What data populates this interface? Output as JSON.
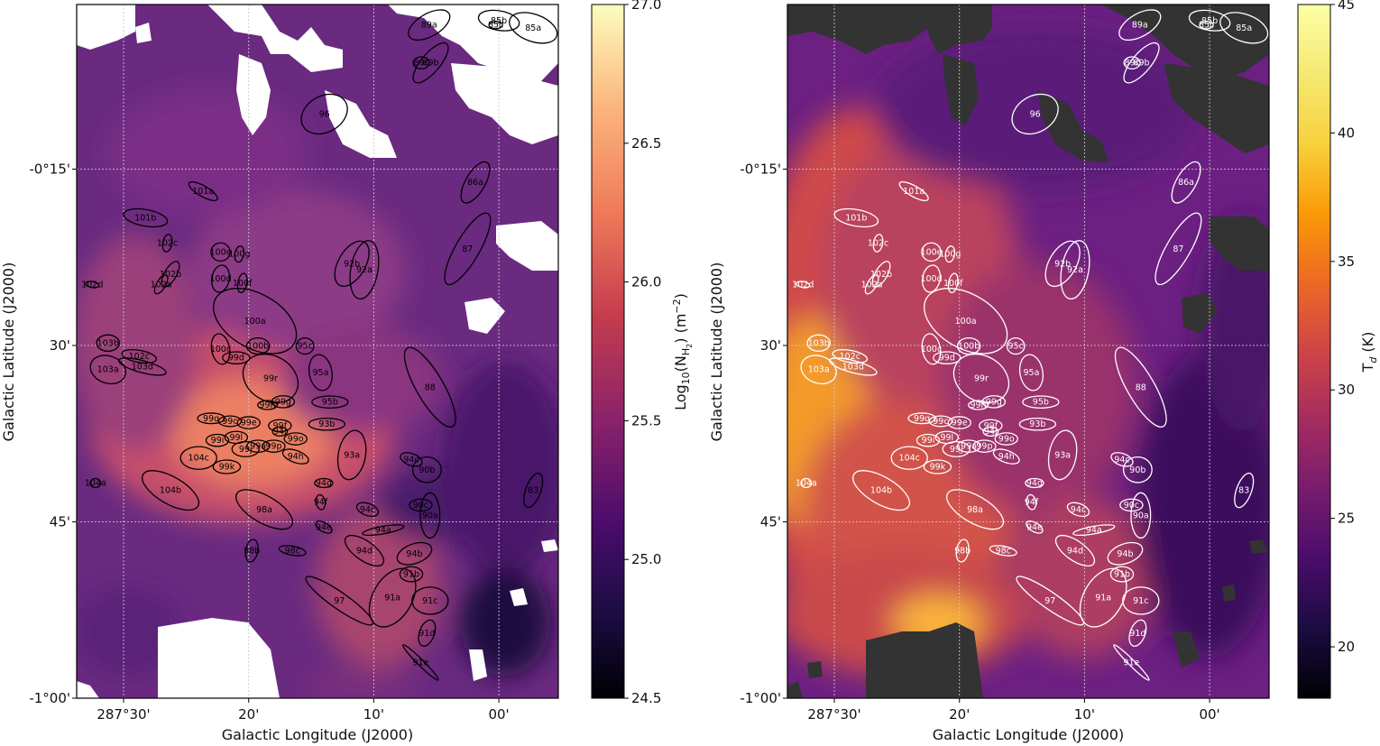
{
  "chart_data": [
    {
      "type": "heatmap",
      "panel": "left",
      "colormap": "inferno",
      "xlabel": "Galactic Longitude (J2000)",
      "ylabel": "Galactic Latitude (J2000)",
      "xticks": [
        {
          "label": "287°30'",
          "value": 287.5
        },
        {
          "label": "20'",
          "value": 287.3333
        },
        {
          "label": "10'",
          "value": 287.1667
        },
        {
          "label": "00'",
          "value": 287.0
        }
      ],
      "yticks": [
        {
          "label": "-0°15'",
          "value": -0.25
        },
        {
          "label": "30'",
          "value": -0.5
        },
        {
          "label": "45'",
          "value": -0.75
        },
        {
          "label": "-1°00'",
          "value": -1.0
        }
      ],
      "colorbar": {
        "label_prefix": "Log",
        "label_sub": "10",
        "label_body": "(N",
        "label_subsub": "H",
        "label_subsubsub": "2",
        "label_suffix": ") (m",
        "label_sup": "−2",
        "label_end": ")",
        "ticks": [
          "24.5",
          "25.0",
          "25.5",
          "26.0",
          "26.5",
          "27.0"
        ],
        "range": [
          24.5,
          27.0
        ]
      },
      "ellipse_color": "#000000",
      "masked_color": "#ffffff"
    },
    {
      "type": "heatmap",
      "panel": "right",
      "colormap": "inferno",
      "xlabel": "Galactic Longitude (J2000)",
      "ylabel": "Galactic Latitude (J2000)",
      "xticks": [
        {
          "label": "287°30'",
          "value": 287.5
        },
        {
          "label": "20'",
          "value": 287.3333
        },
        {
          "label": "10'",
          "value": 287.1667
        },
        {
          "label": "00'",
          "value": 287.0
        }
      ],
      "yticks": [
        {
          "label": "-0°15'",
          "value": -0.25
        },
        {
          "label": "30'",
          "value": -0.5
        },
        {
          "label": "45'",
          "value": -0.75
        },
        {
          "label": "-1°00'",
          "value": -1.0
        }
      ],
      "colorbar": {
        "label_main": "T",
        "label_sub": "d",
        "label_suffix": " (K)",
        "ticks": [
          "20",
          "25",
          "30",
          "35",
          "40",
          "45"
        ],
        "range": [
          18,
          45
        ]
      },
      "ellipse_color": "#ffffff",
      "masked_color": "#333333"
    }
  ],
  "clumps": [
    {
      "label": "89a",
      "l": 287.0929,
      "b": -0.0457,
      "a": 0.0306,
      "bb": 0.0151,
      "pa": 30
    },
    {
      "label": "85b",
      "l": 287.0,
      "b": -0.0394,
      "a": 0.0275,
      "bb": 0.013,
      "pa": -10
    },
    {
      "label": "85c",
      "l": 287.0042,
      "b": -0.0457,
      "a": 0.009,
      "bb": 0.005,
      "pa": 0
    },
    {
      "label": "85a",
      "l": 286.9542,
      "b": -0.0498,
      "a": 0.0331,
      "bb": 0.0181,
      "pa": -20
    },
    {
      "label": "89c",
      "l": 287.1033,
      "b": -0.0994,
      "a": 0.0108,
      "bb": 0.008,
      "pa": 0
    },
    {
      "label": "89b",
      "l": 287.0908,
      "b": -0.0994,
      "a": 0.0331,
      "bb": 0.0125,
      "pa": 50
    },
    {
      "label": "96",
      "l": 287.2325,
      "b": -0.172,
      "a": 0.0325,
      "bb": 0.0241,
      "pa": 30
    },
    {
      "label": "86a",
      "l": 287.0313,
      "b": -0.2689,
      "a": 0.0307,
      "bb": 0.013,
      "pa": 60
    },
    {
      "label": "101a",
      "l": 287.394,
      "b": -0.2814,
      "a": 0.0217,
      "bb": 0.007,
      "pa": -30
    },
    {
      "label": "101b",
      "l": 287.4708,
      "b": -0.3191,
      "a": 0.0295,
      "bb": 0.011,
      "pa": -10
    },
    {
      "label": "87",
      "l": 287.0417,
      "b": -0.363,
      "a": 0.0542,
      "bb": 0.016,
      "pa": 60
    },
    {
      "label": "102c",
      "l": 287.4417,
      "b": -0.3549,
      "a": 0.0117,
      "bb": 0.0061,
      "pa": 80
    },
    {
      "label": "100e",
      "l": 287.3708,
      "b": -0.3675,
      "a": 0.0127,
      "bb": 0.0121,
      "pa": 0
    },
    {
      "label": "100g",
      "l": 287.3458,
      "b": -0.3705,
      "a": 0.0108,
      "bb": 0.006,
      "pa": 80
    },
    {
      "label": "92b",
      "l": 287.1958,
      "b": -0.3841,
      "a": 0.0331,
      "bb": 0.0181,
      "pa": 60
    },
    {
      "label": "92a",
      "l": 287.1792,
      "b": -0.3927,
      "a": 0.0393,
      "bb": 0.0181,
      "pa": 80
    },
    {
      "label": "102b",
      "l": 287.4375,
      "b": -0.3989,
      "a": 0.019,
      "bb": 0.008,
      "pa": 60
    },
    {
      "label": "102a",
      "l": 287.45,
      "b": -0.4135,
      "a": 0.014,
      "bb": 0.006,
      "pa": 60
    },
    {
      "label": "100d",
      "l": 287.3708,
      "b": -0.4053,
      "a": 0.0181,
      "bb": 0.0116,
      "pa": 80
    },
    {
      "label": "100f",
      "l": 287.3417,
      "b": -0.4115,
      "a": 0.013,
      "bb": 0.006,
      "pa": 80
    },
    {
      "label": "102d",
      "l": 287.5417,
      "b": -0.4137,
      "a": 0.009,
      "bb": 0.004,
      "pa": -10
    },
    {
      "label": "100a",
      "l": 287.325,
      "b": -0.4653,
      "a": 0.0603,
      "bb": 0.0361,
      "pa": -30
    },
    {
      "label": "95c",
      "l": 287.2583,
      "b": -0.5008,
      "a": 0.0117,
      "bb": 0.0108,
      "pa": 0
    },
    {
      "label": "103b",
      "l": 287.5208,
      "b": -0.4966,
      "a": 0.0151,
      "bb": 0.0108,
      "pa": 0
    },
    {
      "label": "100c",
      "l": 287.3708,
      "b": -0.505,
      "a": 0.0205,
      "bb": 0.012,
      "pa": -80
    },
    {
      "label": "100b",
      "l": 287.3208,
      "b": -0.5008,
      "a": 0.0151,
      "bb": 0.0108,
      "pa": 0
    },
    {
      "label": "102c",
      "l": 287.4792,
      "b": -0.5154,
      "a": 0.0233,
      "bb": 0.008,
      "pa": -10
    },
    {
      "label": "99d",
      "l": 287.35,
      "b": -0.5175,
      "a": 0.0181,
      "bb": 0.008,
      "pa": 0
    },
    {
      "label": "95a",
      "l": 287.2375,
      "b": -0.5384,
      "a": 0.0241,
      "bb": 0.0151,
      "pa": -80
    },
    {
      "label": "88",
      "l": 287.0917,
      "b": -0.5592,
      "a": 0.0602,
      "bb": 0.0181,
      "pa": -60
    },
    {
      "label": "103a",
      "l": 287.5208,
      "b": -0.5342,
      "a": 0.0241,
      "bb": 0.0181,
      "pa": -20
    },
    {
      "label": "103d",
      "l": 287.475,
      "b": -0.53,
      "a": 0.0325,
      "bb": 0.008,
      "pa": -15
    },
    {
      "label": "99r",
      "l": 287.3042,
      "b": -0.5468,
      "a": 0.0385,
      "bb": 0.0301,
      "pa": -30
    },
    {
      "label": "99h",
      "l": 287.3083,
      "b": -0.5844,
      "a": 0.013,
      "bb": 0.006,
      "pa": 0
    },
    {
      "label": "99g",
      "l": 287.2875,
      "b": -0.5798,
      "a": 0.0151,
      "bb": 0.008,
      "pa": 0
    },
    {
      "label": "95b",
      "l": 287.225,
      "b": -0.5802,
      "a": 0.0241,
      "bb": 0.008,
      "pa": 0
    },
    {
      "label": "99q",
      "l": 287.3833,
      "b": -0.6033,
      "a": 0.0181,
      "bb": 0.007,
      "pa": 0
    },
    {
      "label": "99c",
      "l": 287.3583,
      "b": -0.6074,
      "a": 0.0151,
      "bb": 0.007,
      "pa": 0
    },
    {
      "label": "99e",
      "l": 287.3333,
      "b": -0.6095,
      "a": 0.0151,
      "bb": 0.008,
      "pa": 0
    },
    {
      "label": "99f",
      "l": 287.2917,
      "b": -0.6137,
      "a": 0.0151,
      "bb": 0.008,
      "pa": 0
    },
    {
      "label": "93b",
      "l": 287.2292,
      "b": -0.6116,
      "a": 0.0241,
      "bb": 0.008,
      "pa": 0
    },
    {
      "label": "94i",
      "l": 287.2917,
      "b": -0.622,
      "a": 0.01,
      "bb": 0.006,
      "pa": 0
    },
    {
      "label": "99i",
      "l": 287.375,
      "b": -0.6345,
      "a": 0.0151,
      "bb": 0.008,
      "pa": 0
    },
    {
      "label": "99l",
      "l": 287.35,
      "b": -0.6303,
      "a": 0.0151,
      "bb": 0.008,
      "pa": 0
    },
    {
      "label": "99o",
      "l": 287.2708,
      "b": -0.6324,
      "a": 0.0151,
      "bb": 0.008,
      "pa": 0
    },
    {
      "label": "99j",
      "l": 287.3375,
      "b": -0.647,
      "a": 0.0181,
      "bb": 0.01,
      "pa": 0
    },
    {
      "label": "99a",
      "l": 287.3208,
      "b": -0.6428,
      "a": 0.0151,
      "bb": 0.008,
      "pa": 0
    },
    {
      "label": "99p",
      "l": 287.3,
      "b": -0.6428,
      "a": 0.0151,
      "bb": 0.008,
      "pa": 0
    },
    {
      "label": "94h",
      "l": 287.2708,
      "b": -0.6574,
      "a": 0.0181,
      "bb": 0.008,
      "pa": -20
    },
    {
      "label": "93a",
      "l": 287.1958,
      "b": -0.6553,
      "a": 0.0331,
      "bb": 0.0181,
      "pa": 80
    },
    {
      "label": "104c",
      "l": 287.4,
      "b": -0.6595,
      "a": 0.0241,
      "bb": 0.0151,
      "pa": 0
    },
    {
      "label": "99k",
      "l": 287.3625,
      "b": -0.672,
      "a": 0.0181,
      "bb": 0.009,
      "pa": 0
    },
    {
      "label": "94c",
      "l": 287.1167,
      "b": -0.6616,
      "a": 0.0151,
      "bb": 0.008,
      "pa": -20
    },
    {
      "label": "90b",
      "l": 287.0958,
      "b": -0.6762,
      "a": 0.019,
      "bb": 0.017,
      "pa": 0
    },
    {
      "label": "94g",
      "l": 287.2333,
      "b": -0.695,
      "a": 0.0121,
      "bb": 0.006,
      "pa": 0
    },
    {
      "label": "104a",
      "l": 287.5375,
      "b": -0.695,
      "a": 0.007,
      "bb": 0.006,
      "pa": 0
    },
    {
      "label": "104b",
      "l": 287.4375,
      "b": -0.7054,
      "a": 0.0422,
      "bb": 0.0181,
      "pa": -30
    },
    {
      "label": "83",
      "l": 286.9542,
      "b": -0.7054,
      "a": 0.0241,
      "bb": 0.01,
      "pa": 70
    },
    {
      "label": "94f",
      "l": 287.2375,
      "b": -0.7221,
      "a": 0.01,
      "bb": 0.006,
      "pa": -80
    },
    {
      "label": "90c",
      "l": 287.1042,
      "b": -0.7262,
      "a": 0.0151,
      "bb": 0.008,
      "pa": 0
    },
    {
      "label": "90a",
      "l": 287.0917,
      "b": -0.7409,
      "a": 0.0301,
      "bb": 0.013,
      "pa": 90
    },
    {
      "label": "94c",
      "l": 287.175,
      "b": -0.7325,
      "a": 0.0151,
      "bb": 0.008,
      "pa": -20
    },
    {
      "label": "98a",
      "l": 287.3125,
      "b": -0.7325,
      "a": 0.0422,
      "bb": 0.0181,
      "pa": -30
    },
    {
      "label": "94e",
      "l": 287.2333,
      "b": -0.7575,
      "a": 0.0121,
      "bb": 0.006,
      "pa": -30
    },
    {
      "label": "94a",
      "l": 287.1542,
      "b": -0.7617,
      "a": 0.0281,
      "bb": 0.005,
      "pa": 10
    },
    {
      "label": "98b",
      "l": 287.3292,
      "b": -0.7909,
      "a": 0.0151,
      "bb": 0.008,
      "pa": 80
    },
    {
      "label": "98c",
      "l": 287.275,
      "b": -0.7909,
      "a": 0.0181,
      "bb": 0.006,
      "pa": -10
    },
    {
      "label": "94d",
      "l": 287.1792,
      "b": -0.7909,
      "a": 0.0301,
      "bb": 0.013,
      "pa": -35
    },
    {
      "label": "94b",
      "l": 287.1125,
      "b": -0.7951,
      "a": 0.0241,
      "bb": 0.013,
      "pa": 20
    },
    {
      "label": "91b",
      "l": 287.1167,
      "b": -0.8243,
      "a": 0.0151,
      "bb": 0.01,
      "pa": 0
    },
    {
      "label": "91a",
      "l": 287.1417,
      "b": -0.8576,
      "a": 0.0422,
      "bb": 0.0261,
      "pa": 60
    },
    {
      "label": "91c",
      "l": 287.0917,
      "b": -0.8618,
      "a": 0.0241,
      "bb": 0.0181,
      "pa": 0
    },
    {
      "label": "97",
      "l": 287.2125,
      "b": -0.8618,
      "a": 0.054,
      "bb": 0.011,
      "pa": -35
    },
    {
      "label": "91d",
      "l": 287.0958,
      "b": -0.9077,
      "a": 0.0181,
      "bb": 0.01,
      "pa": 70
    },
    {
      "label": "91e",
      "l": 287.1042,
      "b": -0.9494,
      "a": 0.0331,
      "bb": 0.004,
      "pa": -45
    }
  ]
}
